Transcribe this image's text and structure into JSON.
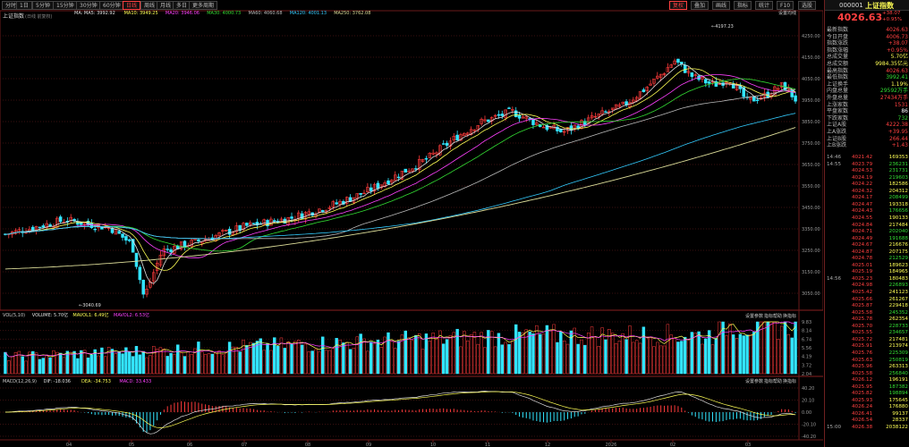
{
  "toolbar": {
    "periods": [
      "分时",
      "1日",
      "5分钟",
      "15分钟",
      "30分钟",
      "60分钟",
      "日线",
      "周线",
      "月线",
      "多日",
      "更多周期"
    ],
    "active_period": "日线",
    "right_buttons": [
      "复权",
      "叠加",
      "画线",
      "指标",
      "统计",
      "F10",
      "选股"
    ]
  },
  "main_chart": {
    "title": "上证指数",
    "params": "(日线 前复权)",
    "ma_labels": [
      {
        "text": "MA: MA5: 3992.92",
        "color": "#e0e0e0"
      },
      {
        "text": "MA10: 3949.25",
        "color": "#ffff55"
      },
      {
        "text": "MA20: 3946.06",
        "color": "#ff40ff"
      },
      {
        "text": "MA30: 4000.73",
        "color": "#33dd33"
      },
      {
        "text": "MA60: 4060.68",
        "color": "#bbbbbb"
      },
      {
        "text": "MA120: 4001.13",
        "color": "#33ccff"
      },
      {
        "text": "MA250: 3762.08",
        "color": "#dddd99"
      }
    ],
    "top_right": "设置均线",
    "high_label": "4197.23",
    "low_label": "3040.69",
    "y_ticks": [
      "4250.00",
      "4150.00",
      "4050.00",
      "3950.00",
      "3850.00",
      "3750.00",
      "3650.00",
      "3550.00",
      "3450.00",
      "3350.00",
      "3250.00",
      "3150.00",
      "3050.00"
    ]
  },
  "volume_chart": {
    "labels": [
      {
        "text": "VOL(5,10)",
        "color": "#ccc"
      },
      {
        "text": "VOLUME: 5.70亿",
        "color": "#e0e0e0"
      },
      {
        "text": "MAVOL1: 6.49亿",
        "color": "#ffff55"
      },
      {
        "text": "MAVOL2: 6.53亿",
        "color": "#ff40ff"
      }
    ],
    "buttons": [
      "设置参数",
      "指标帮助",
      "换指标"
    ],
    "y_ticks": [
      "9.83",
      "8.14",
      "6.74",
      "5.56",
      "4.19",
      "3.72",
      "2.04"
    ]
  },
  "macd_chart": {
    "labels": [
      {
        "text": "MACD(12,26,9)",
        "color": "#ccc"
      },
      {
        "text": "DIF: -18.036",
        "color": "#e0e0e0"
      },
      {
        "text": "DEA: -34.753",
        "color": "#ffff55"
      },
      {
        "text": "MACD: 33.433",
        "color": "#ff40ff"
      }
    ],
    "buttons": [
      "设置参数",
      "指标帮助",
      "换指标"
    ],
    "y_ticks": [
      "40.20",
      "20.10",
      "0.00",
      "-20.10",
      "-40.20"
    ]
  },
  "x_labels": [
    "04",
    "05",
    "06",
    "07",
    "08",
    "09",
    "10",
    "11",
    "12",
    "2026",
    "02",
    "03"
  ],
  "right_panel": {
    "code": "000001",
    "name": "上证指数",
    "price": "4026.63",
    "change": "+38.07",
    "change_pct": "+0.95%",
    "stats": [
      {
        "label": "最新指数",
        "value": "4026.63",
        "color": "#ff4040"
      },
      {
        "label": "今日开盘",
        "value": "4006.73",
        "color": "#ff4040"
      },
      {
        "label": "指数涨跌",
        "value": "+38.07",
        "color": "#ff4040"
      },
      {
        "label": "指数涨幅",
        "value": "+0.95%",
        "color": "#ff4040"
      },
      {
        "label": "总成交量",
        "value": "5.70亿",
        "color": "#ffff55"
      },
      {
        "label": "总成交额",
        "value": "9984.35亿元",
        "color": "#ffff55"
      },
      {
        "label": "最高指数",
        "value": "4026.63",
        "color": "#ff4040"
      },
      {
        "label": "最低指数",
        "value": "3992.41",
        "color": "#33dd33"
      },
      {
        "label": "上证换手",
        "value": "1.19%",
        "color": "#ffff55"
      },
      {
        "label": "内盘总量",
        "value": "29592万手",
        "color": "#33dd33"
      },
      {
        "label": "外盘总量",
        "value": "27434万手",
        "color": "#ff4040"
      },
      {
        "label": "上涨家数",
        "value": "1531",
        "color": "#ff4040"
      },
      {
        "label": "平盘家数",
        "value": "86",
        "color": "#ffffff"
      },
      {
        "label": "下跌家数",
        "value": "732",
        "color": "#33dd33"
      },
      {
        "label": "上证A股",
        "value": "4222.38",
        "color": "#ff4040"
      },
      {
        "label": "上A涨跌",
        "value": "+39.95",
        "color": "#ff4040"
      },
      {
        "label": "上证B股",
        "value": "266.44",
        "color": "#ff4040"
      },
      {
        "label": "上B涨跌",
        "value": "+1.43",
        "color": "#ff4040"
      }
    ],
    "ticks": [
      {
        "t": "14:46",
        "p": "4021.42",
        "q": "169353",
        "c": "y"
      },
      {
        "t": "14:55",
        "p": "4023.79",
        "q": "236231",
        "c": "g"
      },
      {
        "t": "",
        "p": "4024.53",
        "q": "231731",
        "c": "g"
      },
      {
        "t": "",
        "p": "4024.19",
        "q": "219603",
        "c": "g"
      },
      {
        "t": "",
        "p": "4024.22",
        "q": "182586",
        "c": "y"
      },
      {
        "t": "",
        "p": "4024.32",
        "q": "204312",
        "c": "y"
      },
      {
        "t": "",
        "p": "4024.17",
        "q": "208499",
        "c": "g"
      },
      {
        "t": "",
        "p": "4024.47",
        "q": "193318",
        "c": "y"
      },
      {
        "t": "",
        "p": "4024.43",
        "q": "176656",
        "c": "g"
      },
      {
        "t": "",
        "p": "4024.55",
        "q": "190133",
        "c": "y"
      },
      {
        "t": "",
        "p": "4024.84",
        "q": "217484",
        "c": "y"
      },
      {
        "t": "",
        "p": "4024.71",
        "q": "202040",
        "c": "g"
      },
      {
        "t": "",
        "p": "4024.49",
        "q": "191688",
        "c": "g"
      },
      {
        "t": "",
        "p": "4024.67",
        "q": "216676",
        "c": "y"
      },
      {
        "t": "",
        "p": "4024.87",
        "q": "207175",
        "c": "y"
      },
      {
        "t": "",
        "p": "4024.78",
        "q": "212529",
        "c": "g"
      },
      {
        "t": "",
        "p": "4025.01",
        "q": "189623",
        "c": "y"
      },
      {
        "t": "",
        "p": "4025.19",
        "q": "184965",
        "c": "y"
      },
      {
        "t": "14:56",
        "p": "4025.23",
        "q": "180483",
        "c": "y"
      },
      {
        "t": "",
        "p": "4024.98",
        "q": "226893",
        "c": "g"
      },
      {
        "t": "",
        "p": "4025.42",
        "q": "241123",
        "c": "y"
      },
      {
        "t": "",
        "p": "4025.66",
        "q": "261267",
        "c": "y"
      },
      {
        "t": "",
        "p": "4025.87",
        "q": "229418",
        "c": "y"
      },
      {
        "t": "",
        "p": "4025.58",
        "q": "245352",
        "c": "g"
      },
      {
        "t": "",
        "p": "4025.78",
        "q": "262354",
        "c": "y"
      },
      {
        "t": "",
        "p": "4025.70",
        "q": "228733",
        "c": "g"
      },
      {
        "t": "",
        "p": "4025.55",
        "q": "234657",
        "c": "g"
      },
      {
        "t": "",
        "p": "4025.72",
        "q": "217481",
        "c": "y"
      },
      {
        "t": "",
        "p": "4025.91",
        "q": "213974",
        "c": "y"
      },
      {
        "t": "",
        "p": "4025.76",
        "q": "225309",
        "c": "g"
      },
      {
        "t": "",
        "p": "4025.63",
        "q": "250819",
        "c": "g"
      },
      {
        "t": "",
        "p": "4025.96",
        "q": "263313",
        "c": "y"
      },
      {
        "t": "",
        "p": "4025.58",
        "q": "256840",
        "c": "g"
      },
      {
        "t": "",
        "p": "4026.12",
        "q": "196191",
        "c": "y"
      },
      {
        "t": "",
        "p": "4025.95",
        "q": "187382",
        "c": "g"
      },
      {
        "t": "",
        "p": "4025.82",
        "q": "198894",
        "c": "g"
      },
      {
        "t": "",
        "p": "4025.93",
        "q": "175645",
        "c": "y"
      },
      {
        "t": "",
        "p": "4026.24",
        "q": "176880",
        "c": "y"
      },
      {
        "t": "",
        "p": "4026.41",
        "q": "99137",
        "c": "y"
      },
      {
        "t": "",
        "p": "4026.54",
        "q": "28337",
        "c": "y"
      },
      {
        "t": "15:00",
        "p": "4026.38",
        "q": "2038122",
        "c": "y"
      }
    ]
  }
}
